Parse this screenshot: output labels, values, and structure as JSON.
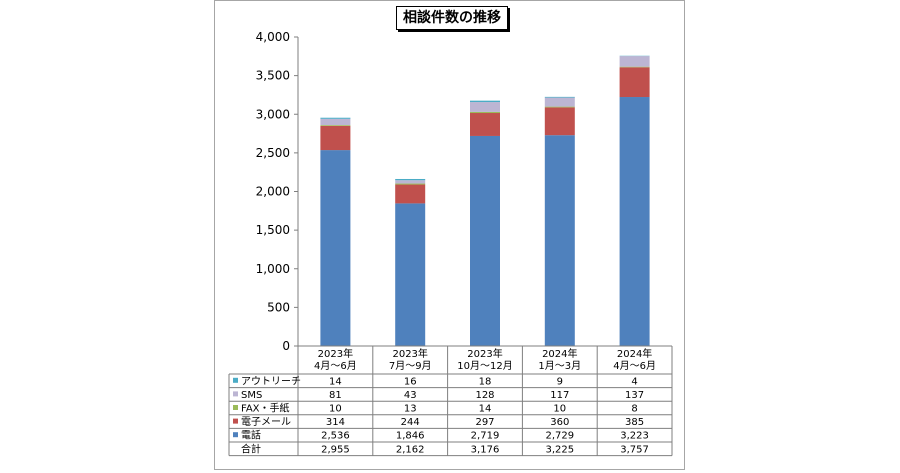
{
  "chart_data": {
    "type": "bar",
    "stacked": true,
    "title": "相談件数の推移",
    "categories": [
      [
        "2023年",
        "4月～6月"
      ],
      [
        "2023年",
        "7月～9月"
      ],
      [
        "2023年",
        "10月～12月"
      ],
      [
        "2024年",
        "1月～3月"
      ],
      [
        "2024年",
        "4月～6月"
      ]
    ],
    "ylim": [
      0,
      4000
    ],
    "yticks": [
      0,
      500,
      1000,
      1500,
      2000,
      2500,
      3000,
      3500,
      4000
    ],
    "ytick_labels": [
      "0",
      "500",
      "1,000",
      "1,500",
      "2,000",
      "2,500",
      "3,000",
      "3,500",
      "4,000"
    ],
    "grid": false,
    "legend": "data-table",
    "series": [
      {
        "name": "電話",
        "color": "#4f81bd",
        "values": [
          2536,
          1846,
          2719,
          2729,
          3223
        ],
        "labels": [
          "2,536",
          "1,846",
          "2,719",
          "2,729",
          "3,223"
        ]
      },
      {
        "name": "電子メール",
        "color": "#c0504d",
        "values": [
          314,
          244,
          297,
          360,
          385
        ],
        "labels": [
          "314",
          "244",
          "297",
          "360",
          "385"
        ]
      },
      {
        "name": "FAX・手紙",
        "color": "#9bbb59",
        "values": [
          10,
          13,
          14,
          10,
          8
        ],
        "labels": [
          "10",
          "13",
          "14",
          "10",
          "8"
        ]
      },
      {
        "name": "SMS",
        "color": "#bcb5d3",
        "values": [
          81,
          43,
          128,
          117,
          137
        ],
        "labels": [
          "81",
          "43",
          "128",
          "117",
          "137"
        ]
      },
      {
        "name": "アウトリーチ",
        "color": "#4bacc6",
        "values": [
          14,
          16,
          18,
          9,
          4
        ],
        "labels": [
          "14",
          "16",
          "18",
          "9",
          "4"
        ]
      }
    ],
    "total": {
      "name": "合計",
      "values": [
        2955,
        2162,
        3176,
        3225,
        3757
      ],
      "labels": [
        "2,955",
        "2,162",
        "3,176",
        "3,225",
        "3,757"
      ]
    },
    "table_row_order": [
      "アウトリーチ",
      "SMS",
      "FAX・手紙",
      "電子メール",
      "電話",
      "合計"
    ]
  }
}
